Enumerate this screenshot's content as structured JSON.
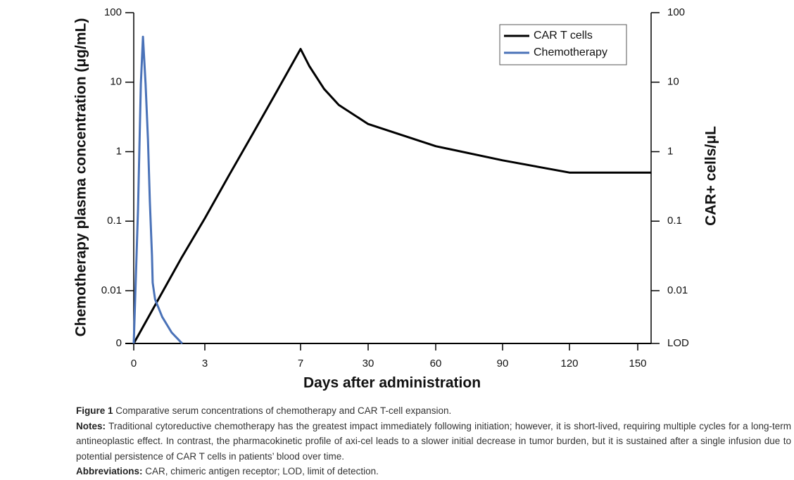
{
  "chart_data": {
    "type": "line",
    "xlabel": "Days after administration",
    "ylabel": "Chemotherapy plasma concentration (μg/mL)",
    "y2label": "CAR+ cells/μL",
    "xlim": [
      0,
      156
    ],
    "xticks": [
      0,
      3,
      7,
      30,
      60,
      90,
      120,
      150
    ],
    "ylim": [
      0,
      100
    ],
    "yticks": [
      0,
      0.01,
      0.1,
      1,
      10,
      100
    ],
    "ylog": true,
    "y2lim": [
      0,
      100
    ],
    "y2ticks": [
      {
        "value": 0,
        "label": "LOD"
      },
      0.01,
      0.1,
      1,
      10,
      100
    ],
    "legend": "top-right",
    "series": [
      {
        "name": "CAR T cells",
        "color": "#000000",
        "axis": "y2",
        "x": [
          0,
          2,
          3,
          4,
          5,
          6,
          7,
          10,
          15,
          20,
          30,
          60,
          90,
          120,
          150,
          156
        ],
        "values": [
          0,
          0.029,
          0.11,
          0.45,
          1.8,
          7.3,
          30,
          17,
          8,
          4.7,
          2.5,
          1.2,
          0.75,
          0.5,
          0.5,
          0.5
        ]
      },
      {
        "name": "Chemotherapy",
        "color": "#4a72b8",
        "x": [
          0,
          0.18,
          0.3,
          0.39,
          0.5,
          0.6,
          0.68,
          0.77,
          0.8,
          0.9,
          1.2,
          1.6,
          2.0,
          2.05
        ],
        "values": [
          0,
          0.15,
          9.5,
          45,
          9.5,
          1.5,
          0.19,
          0.032,
          0.013,
          0.0075,
          0.0042,
          0.0025,
          0.0018,
          0
        ]
      }
    ]
  },
  "caption": {
    "figure_label": "Figure 1",
    "figure_text": "Comparative serum concentrations of chemotherapy and CAR T-cell expansion.",
    "notes_label": "Notes:",
    "notes_text": "Traditional cytoreductive chemotherapy has the greatest impact immediately following initiation; however, it is short-lived, requiring multiple cycles for a long-term antineoplastic effect. In contrast, the pharmacokinetic profile of axi-cel leads to a slower initial decrease in tumor burden, but it is sustained after a single infusion due to potential persistence of CAR T cells in patients’ blood over time.",
    "abbreviations_label": "Abbreviations:",
    "abbreviations_text": "CAR, chimeric antigen receptor; LOD, limit of detection."
  }
}
